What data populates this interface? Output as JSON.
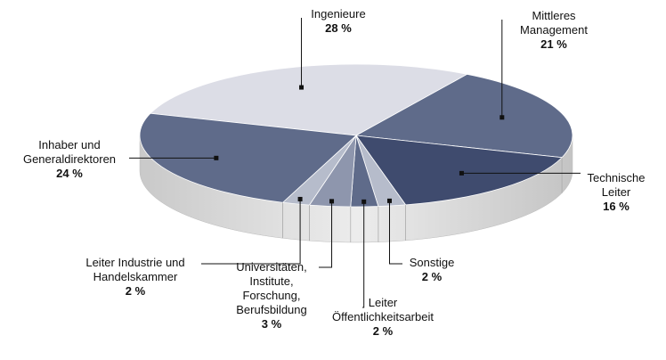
{
  "chart_data": {
    "type": "pie3d",
    "categories": [
      "Ingenieure",
      "Mittleres\nManagement",
      "Technische\nLeiter",
      "Sonstige",
      "Leiter\nÖffentlichkeitsarbeit",
      "Universitäten,\nInstitute,\nForschung,\nBerufsbildung",
      "Leiter Industrie und\nHandelskammer",
      "Inhaber und\nGeneraldirektoren"
    ],
    "values": [
      28,
      21,
      16,
      2,
      2,
      3,
      2,
      24
    ],
    "value_labels": [
      "28 %",
      "21 %",
      "16 %",
      "2 %",
      "2 %",
      "3 %",
      "2 %",
      "24 %"
    ],
    "colors": [
      "#dcdde6",
      "#5f6b8a",
      "#3f4b6e",
      "#b6bccb",
      "#5f6b8a",
      "#8e96ad",
      "#b6bccb",
      "#5f6b8a"
    ]
  }
}
